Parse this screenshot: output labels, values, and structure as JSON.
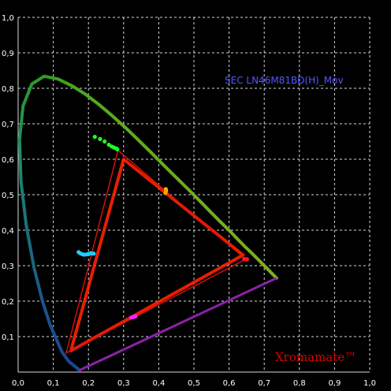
{
  "chart_data": {
    "type": "scatter",
    "title": "SEC LN46M81BD(H)_Mov",
    "watermark": "Xromamate™",
    "xlim": [
      0,
      1
    ],
    "ylim": [
      0,
      1
    ],
    "grid": true,
    "x_ticks": [
      "0,0",
      "0,1",
      "0,2",
      "0,3",
      "0,4",
      "0,5",
      "0,6",
      "0,7",
      "0,8",
      "0,9",
      "1,0"
    ],
    "y_ticks": [
      "0,1",
      "0,2",
      "0,3",
      "0,4",
      "0,5",
      "0,6",
      "0,7",
      "0,8",
      "0,9",
      "1,0"
    ],
    "colors": {
      "background": "#000000",
      "grid": "#d8d8d8",
      "title": "#5555ff",
      "brand": "#e00000",
      "triangle_measured": "#e01010",
      "triangle_reference": "#ff2200"
    },
    "spectral_locus": [
      [
        0.174,
        0.005
      ],
      [
        0.168,
        0.011
      ],
      [
        0.157,
        0.02
      ],
      [
        0.144,
        0.03
      ],
      [
        0.124,
        0.058
      ],
      [
        0.091,
        0.133
      ],
      [
        0.069,
        0.2
      ],
      [
        0.045,
        0.295
      ],
      [
        0.023,
        0.413
      ],
      [
        0.008,
        0.538
      ],
      [
        0.004,
        0.655
      ],
      [
        0.014,
        0.75
      ],
      [
        0.039,
        0.812
      ],
      [
        0.074,
        0.834
      ],
      [
        0.114,
        0.826
      ],
      [
        0.155,
        0.806
      ],
      [
        0.193,
        0.782
      ],
      [
        0.23,
        0.754
      ],
      [
        0.266,
        0.724
      ],
      [
        0.302,
        0.692
      ],
      [
        0.337,
        0.659
      ],
      [
        0.373,
        0.624
      ],
      [
        0.408,
        0.589
      ],
      [
        0.444,
        0.554
      ],
      [
        0.479,
        0.52
      ],
      [
        0.512,
        0.487
      ],
      [
        0.544,
        0.455
      ],
      [
        0.575,
        0.424
      ],
      [
        0.603,
        0.397
      ],
      [
        0.627,
        0.372
      ],
      [
        0.648,
        0.351
      ],
      [
        0.666,
        0.334
      ],
      [
        0.68,
        0.32
      ],
      [
        0.691,
        0.309
      ],
      [
        0.714,
        0.286
      ],
      [
        0.735,
        0.265
      ]
    ],
    "reference_gamut": {
      "name": "",
      "points": [
        [
          0.64,
          0.33
        ],
        [
          0.3,
          0.6
        ],
        [
          0.15,
          0.06
        ]
      ]
    },
    "measured_gamut": {
      "name": "",
      "points": [
        [
          0.647,
          0.318
        ],
        [
          0.284,
          0.625
        ],
        [
          0.137,
          0.054
        ]
      ]
    },
    "series": [
      {
        "name": "",
        "color": "#ff1a1a",
        "points": [
          [
            0.645,
            0.318
          ],
          [
            0.648,
            0.318
          ],
          [
            0.651,
            0.318
          ],
          [
            0.643,
            0.319
          ]
        ]
      },
      {
        "name": "",
        "color": "#22ff22",
        "points": [
          [
            0.218,
            0.663
          ],
          [
            0.233,
            0.657
          ],
          [
            0.246,
            0.65
          ],
          [
            0.258,
            0.641
          ],
          [
            0.266,
            0.636
          ],
          [
            0.272,
            0.633
          ],
          [
            0.278,
            0.631
          ],
          [
            0.282,
            0.628
          ]
        ]
      },
      {
        "name": "",
        "color": "#22ccff",
        "points": [
          [
            0.172,
            0.338
          ],
          [
            0.178,
            0.334
          ],
          [
            0.184,
            0.332
          ],
          [
            0.189,
            0.331
          ],
          [
            0.196,
            0.332
          ],
          [
            0.201,
            0.333
          ],
          [
            0.206,
            0.335
          ],
          [
            0.211,
            0.334
          ],
          [
            0.215,
            0.334
          ]
        ]
      },
      {
        "name": "",
        "color": "#ff22ff",
        "points": [
          [
            0.322,
            0.154
          ],
          [
            0.326,
            0.155
          ],
          [
            0.33,
            0.156
          ],
          [
            0.334,
            0.157
          ]
        ]
      },
      {
        "name": "",
        "color": "#ffaa00",
        "points": [
          [
            0.419,
            0.505
          ],
          [
            0.421,
            0.511
          ],
          [
            0.42,
            0.516
          ]
        ]
      }
    ]
  }
}
